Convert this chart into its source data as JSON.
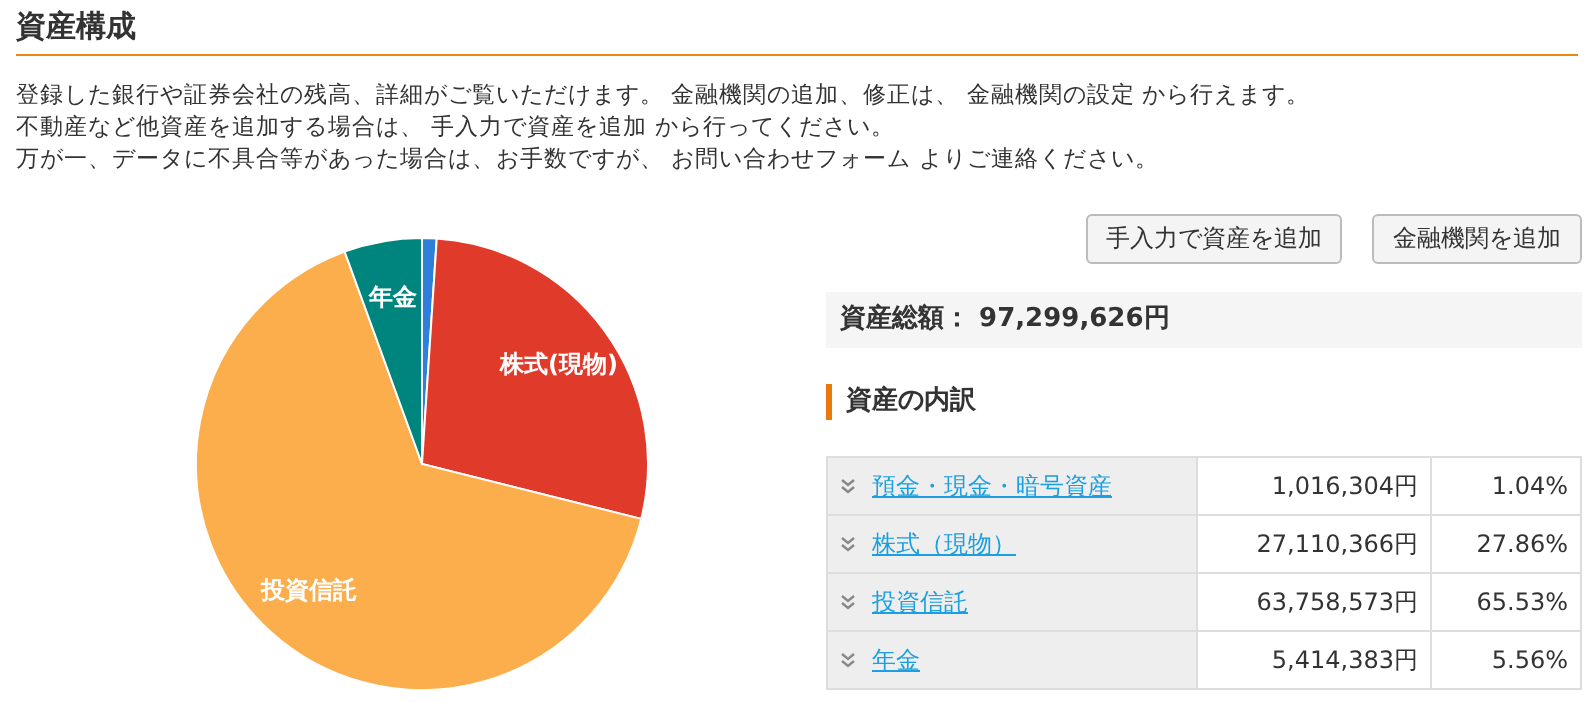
{
  "chart_data": {
    "type": "pie",
    "title": "資産構成",
    "categories": [
      null,
      "株式(現物)",
      "投資信託",
      "年金"
    ],
    "values": [
      1.04,
      27.86,
      65.53,
      5.56
    ],
    "colors": [
      "#2e7fd9",
      "#e03a2b",
      "#fbae4b",
      "#00857e"
    ],
    "annotations": [
      "登録した銀行や証券会社の残高、詳細がご覧いただけます。 金融機関の追加、修正は、 金融機関の設定 から行えます。",
      "不動産など他資産を追加する場合は、 手入力で資産を追加 から行ってください。",
      "万が一、データに不具合等があった場合は、お手数ですが、 お問い合わせフォーム よりご連絡ください。",
      "手入力で資産を追加",
      "金融機関を追加",
      "資産総額： 97,299,626円",
      "資産の内訳",
      "預金・現金・暗号資産",
      "1,016,304円",
      "1.04%",
      "株式（現物）",
      "27,110,366円",
      "27.86%",
      "投資信託",
      "63,758,573円",
      "65.53%",
      "年金",
      "5,414,383円",
      "5.56%"
    ]
  }
}
